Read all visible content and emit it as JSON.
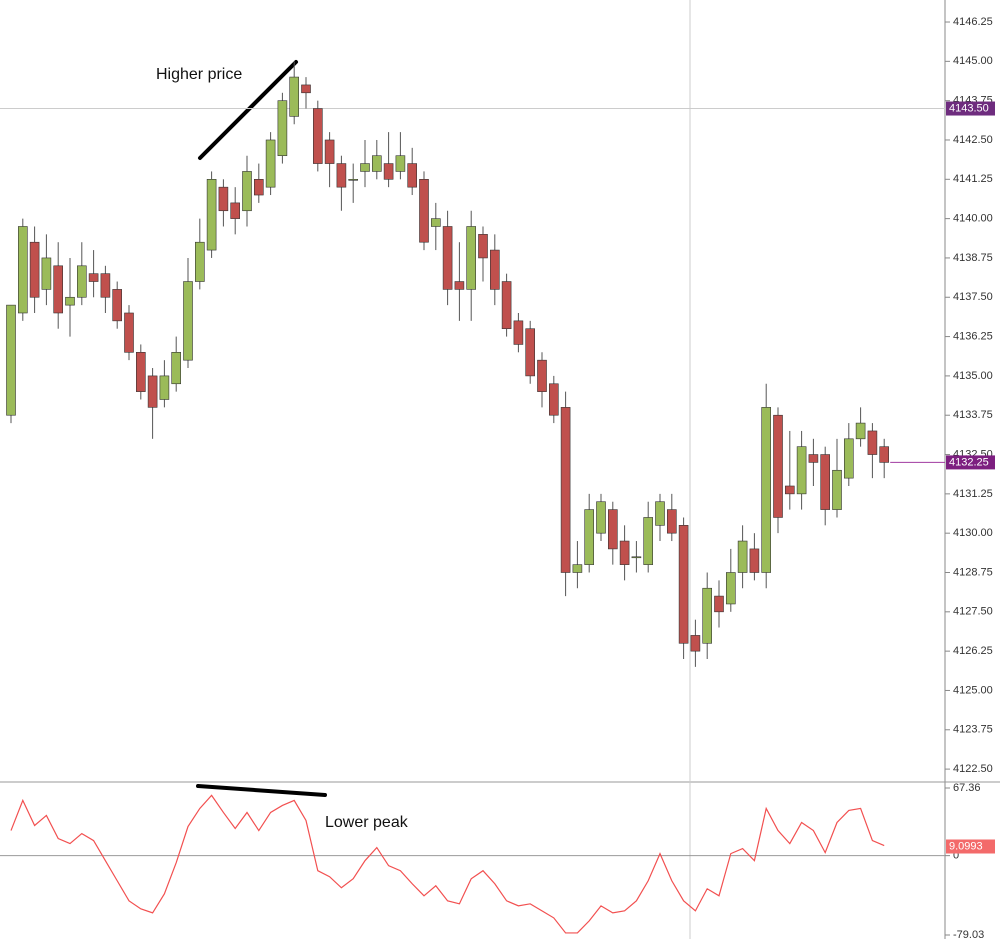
{
  "chart_data": [
    {
      "type": "candlestick",
      "open": [
        4133.75,
        4137.0,
        4139.25,
        4137.75,
        4138.5,
        4137.25,
        4137.5,
        4138.25,
        4138.25,
        4137.75,
        4137.0,
        4135.75,
        4135.0,
        4134.25,
        4134.75,
        4135.5,
        4138.0,
        4139.0,
        4141.0,
        4140.5,
        4140.25,
        4141.25,
        4141.0,
        4142.0,
        4143.25,
        4144.25,
        4143.5,
        4142.5,
        4141.75,
        4141.25,
        4141.5,
        4141.5,
        4141.75,
        4141.5,
        4141.75,
        4141.25,
        4139.75,
        4139.75,
        4138.0,
        4137.75,
        4139.5,
        4139.0,
        4138.0,
        4136.75,
        4136.5,
        4135.5,
        4134.75,
        4134.0,
        4128.75,
        4129.0,
        4130.0,
        4130.75,
        4129.75,
        4129.25,
        4129.0,
        4130.25,
        4130.75,
        4130.25,
        4126.75,
        4126.5,
        4128.0,
        4127.75,
        4128.75,
        4129.5,
        4128.75,
        4133.75,
        4131.5,
        4131.25,
        4132.5,
        4132.5,
        4130.75,
        4131.75,
        4133.0,
        4133.25,
        4132.75
      ],
      "high": [
        4137.25,
        4140.0,
        4139.75,
        4139.5,
        4139.25,
        4138.75,
        4139.25,
        4139.0,
        4138.5,
        4138.0,
        4137.25,
        4136.0,
        4135.25,
        4135.5,
        4136.25,
        4138.75,
        4140.0,
        4141.5,
        4141.25,
        4141.0,
        4142.0,
        4141.75,
        4142.75,
        4144.0,
        4145.0,
        4144.5,
        4143.75,
        4142.75,
        4142.0,
        4141.75,
        4142.5,
        4142.5,
        4142.75,
        4142.75,
        4142.25,
        4141.5,
        4140.5,
        4140.25,
        4139.25,
        4140.25,
        4139.75,
        4139.5,
        4138.25,
        4137.0,
        4136.75,
        4135.75,
        4135.0,
        4134.5,
        4129.75,
        4131.25,
        4131.25,
        4131.0,
        4130.25,
        4129.75,
        4131.0,
        4131.25,
        4131.25,
        4130.5,
        4127.25,
        4128.75,
        4128.5,
        4129.5,
        4130.25,
        4130.0,
        4134.75,
        4134.0,
        4133.25,
        4133.25,
        4133.0,
        4132.75,
        4133.0,
        4133.5,
        4134.0,
        4133.5,
        4133.0
      ],
      "low": [
        4133.5,
        4136.75,
        4137.0,
        4137.25,
        4136.5,
        4136.25,
        4137.25,
        4137.5,
        4137.0,
        4136.5,
        4135.5,
        4134.25,
        4133.0,
        4134.0,
        4134.5,
        4135.25,
        4137.75,
        4138.75,
        4139.75,
        4139.5,
        4139.75,
        4140.5,
        4140.75,
        4141.75,
        4143.0,
        4143.5,
        4141.5,
        4141.0,
        4140.25,
        4140.5,
        4141.0,
        4141.25,
        4141.0,
        4141.25,
        4140.75,
        4139.0,
        4139.0,
        4137.25,
        4136.75,
        4136.75,
        4138.0,
        4137.25,
        4136.25,
        4135.75,
        4134.75,
        4134.0,
        4133.5,
        4128.0,
        4128.25,
        4128.75,
        4129.75,
        4129.0,
        4128.5,
        4128.75,
        4128.75,
        4129.75,
        4129.75,
        4126.0,
        4125.75,
        4126.0,
        4127.0,
        4127.5,
        4128.25,
        4128.5,
        4128.25,
        4130.0,
        4130.75,
        4130.75,
        4131.5,
        4130.25,
        4130.5,
        4131.5,
        4132.75,
        4131.75,
        4131.75
      ],
      "close": [
        4137.25,
        4139.75,
        4137.5,
        4138.75,
        4137.0,
        4137.5,
        4138.5,
        4138.0,
        4137.5,
        4136.75,
        4135.75,
        4134.5,
        4134.0,
        4135.0,
        4135.75,
        4138.0,
        4139.25,
        4141.25,
        4140.25,
        4140.0,
        4141.5,
        4140.75,
        4142.5,
        4143.75,
        4144.5,
        4144.0,
        4141.75,
        4141.75,
        4141.0,
        4141.25,
        4141.75,
        4142.0,
        4141.25,
        4142.0,
        4141.0,
        4139.25,
        4140.0,
        4137.75,
        4137.75,
        4139.75,
        4138.75,
        4137.75,
        4136.5,
        4136.0,
        4135.0,
        4134.5,
        4133.75,
        4128.75,
        4129.0,
        4130.75,
        4131.0,
        4129.5,
        4129.0,
        4129.25,
        4130.5,
        4131.0,
        4130.0,
        4126.5,
        4126.25,
        4128.25,
        4127.5,
        4128.75,
        4129.75,
        4128.75,
        4134.0,
        4130.5,
        4131.25,
        4132.75,
        4132.25,
        4130.75,
        4132.0,
        4133.0,
        4133.5,
        4132.5,
        4132.25
      ],
      "up_color": "#9bbb59",
      "down_color": "#c0504d",
      "ylim": [
        4122.09,
        4146.95
      ],
      "yticks": [
        4146.25,
        {
          "value": 4145.0,
          "label": "4145.00"
        },
        4143.75,
        {
          "value": 4142.5,
          "label": "4142.50"
        },
        4141.25,
        {
          "value": 4140.0,
          "label": "4140.00"
        },
        4138.75,
        {
          "value": 4137.5,
          "label": "4137.50"
        },
        4136.25,
        {
          "value": 4135.0,
          "label": "4135.00"
        },
        4133.75,
        {
          "value": 4132.5,
          "label": "4132.50"
        },
        4131.25,
        {
          "value": 4130.0,
          "label": "4130.00"
        },
        4128.75,
        {
          "value": 4127.5,
          "label": "4127.50"
        },
        4126.25,
        {
          "value": 4125.0,
          "label": "4125.00"
        },
        4123.75,
        {
          "value": 4122.5,
          "label": "4122.50"
        }
      ],
      "crosshair_price": {
        "value": 4143.5,
        "label": "4143.50"
      },
      "last_price": {
        "value": 4132.25,
        "label": "4132.25"
      },
      "annotation": "Higher price"
    },
    {
      "type": "line",
      "values": [
        25,
        55,
        30,
        40,
        17,
        12,
        22,
        15,
        -5,
        -25,
        -45,
        -53,
        -57,
        -38,
        -7,
        29,
        47,
        60,
        43,
        27,
        43,
        25,
        43,
        50,
        55,
        35,
        -15,
        -21,
        -32,
        -23,
        -5,
        8,
        -10,
        -15,
        -28,
        -40,
        -30,
        -45,
        -48,
        -23,
        -15,
        -28,
        -45,
        -50,
        -48,
        -55,
        -62,
        -77,
        -77,
        -65,
        -50,
        -57,
        -55,
        -45,
        -25,
        2,
        -25,
        -45,
        -55,
        -33,
        -40,
        2,
        7,
        -5,
        47,
        25,
        12,
        33,
        25,
        3,
        33,
        45,
        47,
        15,
        10
      ],
      "color": "#f25050",
      "ylim": [
        -79.03,
        67.36
      ],
      "yticks": [
        67.36,
        0,
        -79.03
      ],
      "last_value": {
        "value": 9.0993,
        "label": "9.0993"
      },
      "annotation": "Lower peak"
    }
  ]
}
